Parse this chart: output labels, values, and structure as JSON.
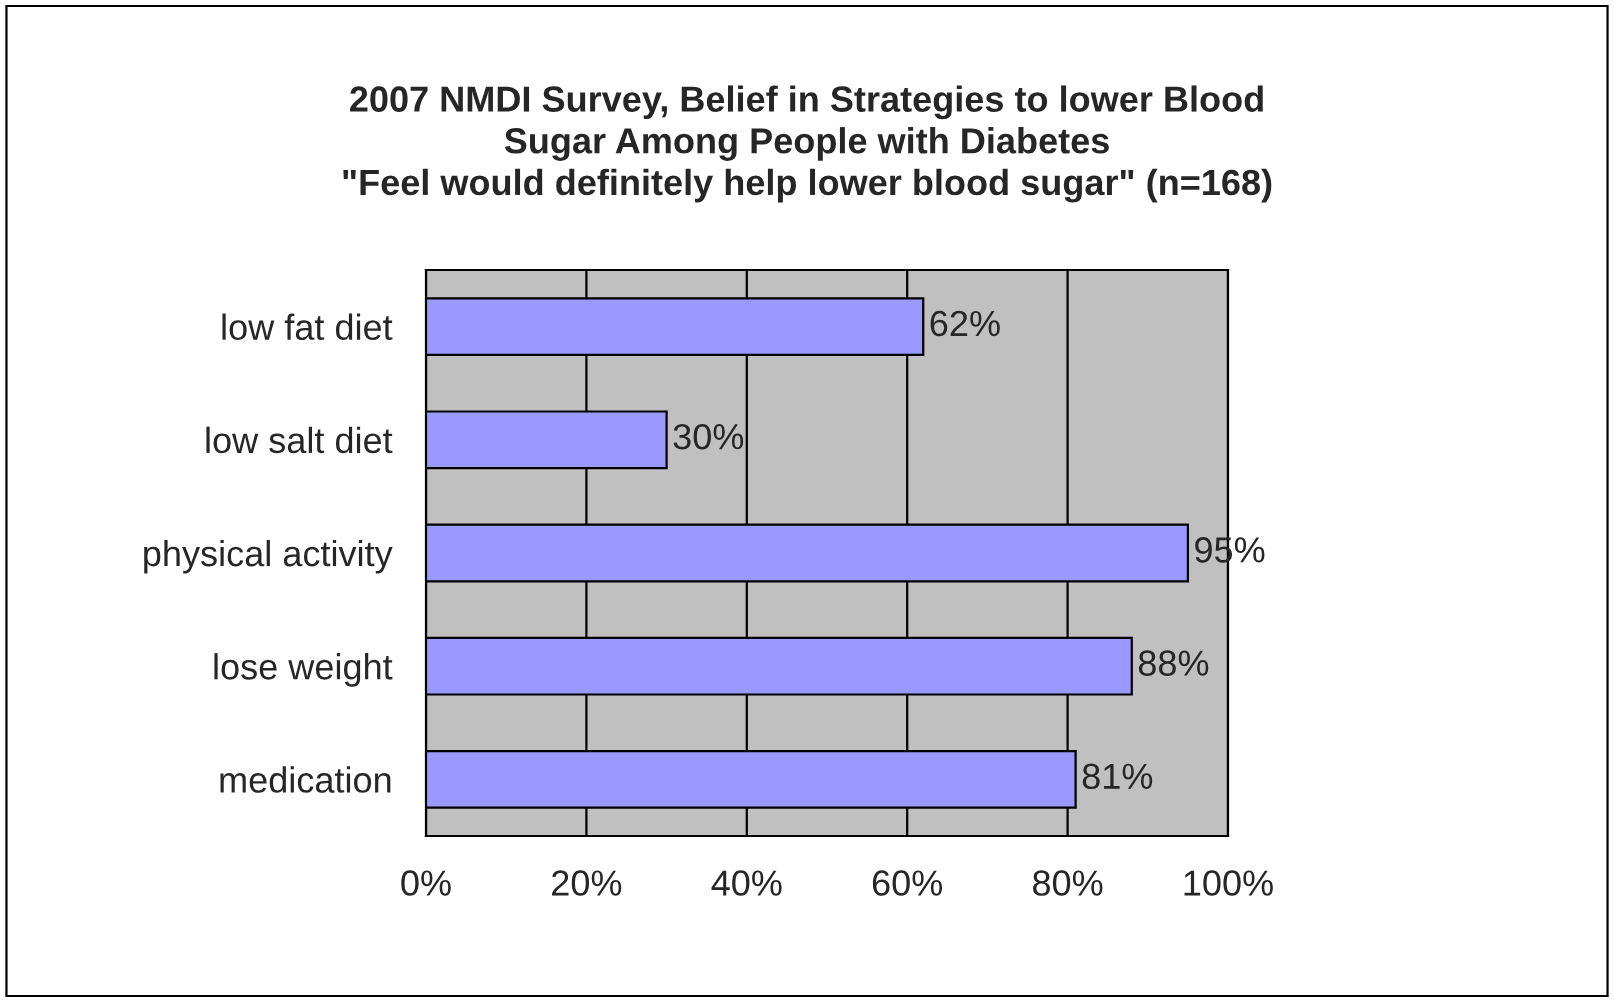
{
  "chart_data": {
    "type": "bar",
    "orientation": "horizontal",
    "title": "2007 NMDI Survey, Belief in Strategies to lower Blood\nSugar Among People with Diabetes\n\"Feel would definitely help lower blood sugar\" (n=168)",
    "categories": [
      "low fat diet",
      "low salt diet",
      "physical activity",
      "lose weight",
      "medication"
    ],
    "values": [
      62,
      30,
      95,
      88,
      81
    ],
    "value_labels": [
      "62%",
      "30%",
      "95%",
      "88%",
      "81%"
    ],
    "color": "#9999ff",
    "xlim": [
      0,
      100
    ],
    "xticks": [
      {
        "value": 0,
        "label": "0%"
      },
      {
        "value": 20,
        "label": "20%"
      },
      {
        "value": 40,
        "label": "40%"
      },
      {
        "value": 60,
        "label": "60%"
      },
      {
        "value": 80,
        "label": "80%"
      },
      {
        "value": 100,
        "label": "100%"
      }
    ],
    "grid": "x"
  }
}
